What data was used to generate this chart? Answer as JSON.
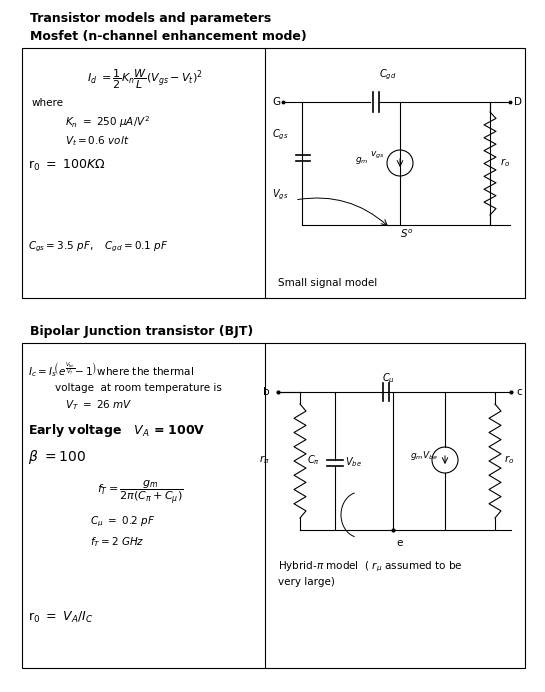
{
  "title": "Transistor models and parameters",
  "mosfet_title": "Mosfet (n-channel enhancement mode)",
  "bjt_title": "Bipolar Junction transistor (BJT)",
  "bg_color": "#ffffff",
  "box_color": "#000000",
  "text_color": "#000000",
  "fig_width": 5.45,
  "fig_height": 6.92
}
